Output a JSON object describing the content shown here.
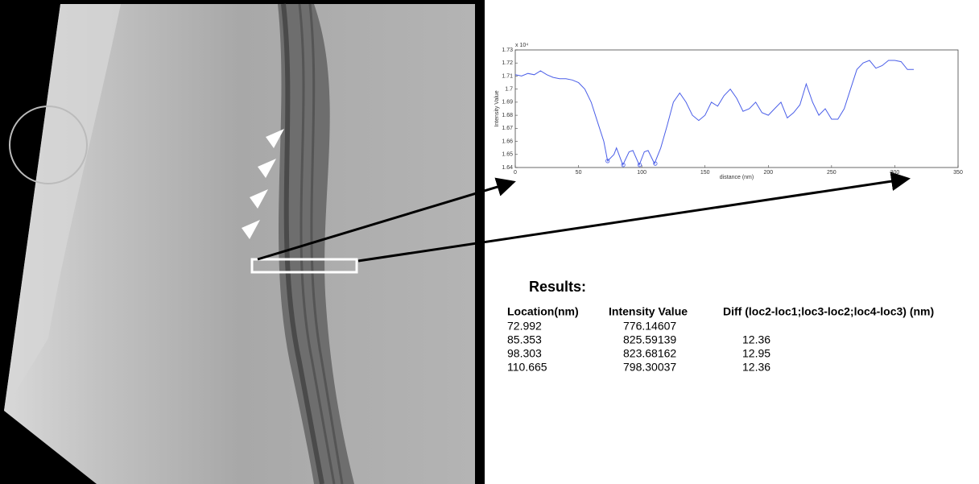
{
  "chart_data": {
    "type": "line",
    "y_multiplier": "x 10⁴",
    "xlabel": "distance (nm)",
    "ylabel": "Intensity Value",
    "xlim": [
      0,
      350
    ],
    "xticks": [
      0,
      50,
      100,
      150,
      200,
      250,
      300,
      350
    ],
    "ylim": [
      1.64,
      1.73
    ],
    "yticks": [
      1.64,
      1.65,
      1.66,
      1.67,
      1.68,
      1.69,
      1.7,
      1.71,
      1.72,
      1.73
    ],
    "x": [
      0,
      5,
      10,
      15,
      20,
      25,
      30,
      35,
      40,
      45,
      50,
      55,
      60,
      65,
      70,
      73,
      78,
      80,
      85,
      90,
      93,
      98,
      102,
      105,
      110,
      115,
      120,
      125,
      130,
      135,
      140,
      145,
      150,
      155,
      160,
      165,
      170,
      175,
      180,
      185,
      190,
      195,
      200,
      205,
      210,
      215,
      220,
      225,
      230,
      235,
      240,
      245,
      250,
      255,
      260,
      265,
      270,
      275,
      280,
      285,
      290,
      295,
      300,
      305,
      310,
      315
    ],
    "series": [
      {
        "color": "#4a5ee8",
        "values": [
          1.711,
          1.71,
          1.712,
          1.711,
          1.714,
          1.711,
          1.709,
          1.708,
          1.708,
          1.707,
          1.705,
          1.7,
          1.69,
          1.675,
          1.66,
          1.645,
          1.65,
          1.655,
          1.642,
          1.652,
          1.653,
          1.642,
          1.652,
          1.653,
          1.643,
          1.655,
          1.672,
          1.69,
          1.697,
          1.69,
          1.68,
          1.676,
          1.68,
          1.69,
          1.687,
          1.695,
          1.7,
          1.693,
          1.683,
          1.685,
          1.69,
          1.682,
          1.68,
          1.685,
          1.69,
          1.678,
          1.682,
          1.688,
          1.704,
          1.69,
          1.68,
          1.685,
          1.677,
          1.677,
          1.685,
          1.7,
          1.715,
          1.72,
          1.722,
          1.716,
          1.718,
          1.722,
          1.722,
          1.721,
          1.715,
          1.715
        ]
      }
    ],
    "markers": {
      "x": [
        72.992,
        85.353,
        98.303,
        110.665
      ],
      "y": [
        1.645,
        1.642,
        1.642,
        1.643
      ]
    }
  },
  "results": {
    "title": "Results:",
    "headers": [
      "Location(nm)",
      "Intensity Value",
      "Diff (loc2-loc1;loc3-loc2;loc4-loc3) (nm)"
    ],
    "rows": [
      [
        "72.992",
        "776.14607"
      ],
      [
        "85.353",
        "825.59139",
        "12.36"
      ],
      [
        "98.303",
        "823.68162",
        "12.95"
      ],
      [
        "110.665",
        "798.30037",
        "12.36"
      ]
    ]
  }
}
